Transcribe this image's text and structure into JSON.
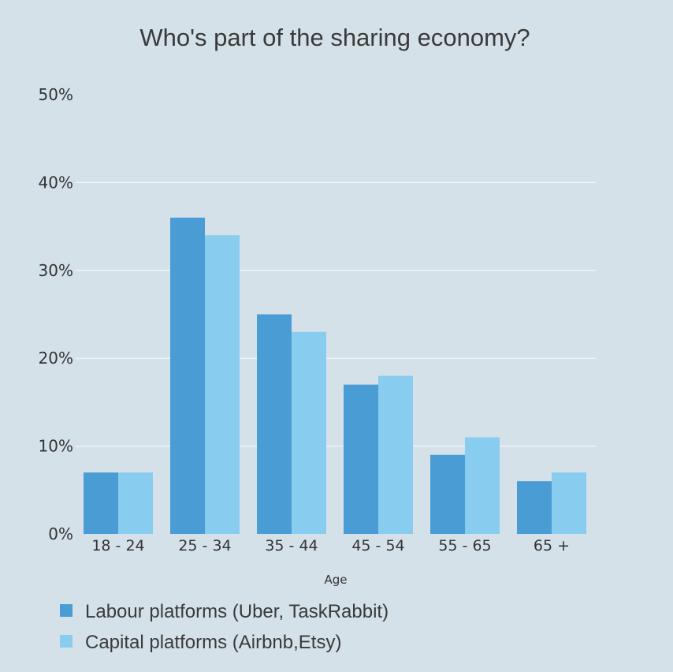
{
  "chart_data": {
    "type": "bar",
    "title": "Who's part of the sharing economy?",
    "xlabel": "Age",
    "ylabel": "",
    "categories": [
      "18 - 24",
      "25 - 34",
      "35 - 44",
      "45 - 54",
      "55 - 65",
      "65 +"
    ],
    "series": [
      {
        "name": "Labour platforms (Uber, TaskRabbit)",
        "color": "#4a9cd4",
        "values": [
          7,
          36,
          25,
          17,
          9,
          6
        ]
      },
      {
        "name": "Capital platforms (Airbnb,Etsy)",
        "color": "#88ccef",
        "values": [
          7,
          34,
          23,
          18,
          11,
          7
        ]
      }
    ],
    "ylim": [
      0,
      50
    ],
    "yticks": [
      0,
      10,
      20,
      30,
      40,
      50
    ],
    "ytick_labels": [
      "0%",
      "10%",
      "20%",
      "30%",
      "40%",
      "50%"
    ],
    "grid": true,
    "legend_position": "bottom-left",
    "background_color": "#d5e1e9"
  }
}
